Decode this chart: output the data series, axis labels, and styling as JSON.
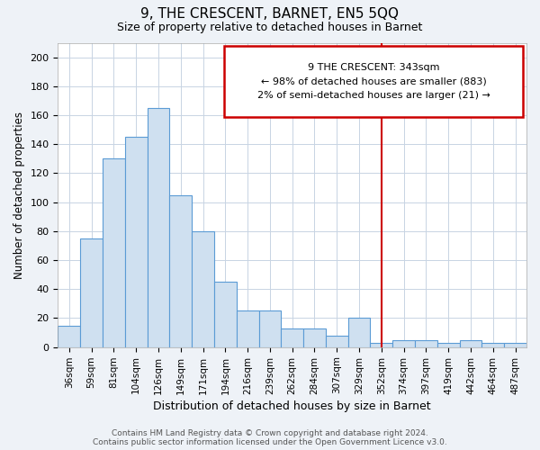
{
  "title": "9, THE CRESCENT, BARNET, EN5 5QQ",
  "subtitle": "Size of property relative to detached houses in Barnet",
  "xlabel": "Distribution of detached houses by size in Barnet",
  "ylabel": "Number of detached properties",
  "bar_color": "#cfe0f0",
  "bar_edge_color": "#5b9bd5",
  "categories": [
    "36sqm",
    "59sqm",
    "81sqm",
    "104sqm",
    "126sqm",
    "149sqm",
    "171sqm",
    "194sqm",
    "216sqm",
    "239sqm",
    "262sqm",
    "284sqm",
    "307sqm",
    "329sqm",
    "352sqm",
    "374sqm",
    "397sqm",
    "419sqm",
    "442sqm",
    "464sqm",
    "487sqm"
  ],
  "values": [
    15,
    75,
    130,
    145,
    165,
    105,
    80,
    45,
    25,
    25,
    13,
    13,
    8,
    20,
    3,
    5,
    5,
    3,
    5,
    3,
    3
  ],
  "vline_x": 14.0,
  "vline_color": "#cc0000",
  "annotation_text": "9 THE CRESCENT: 343sqm\n← 98% of detached houses are smaller (883)\n2% of semi-detached houses are larger (21) →",
  "ylim": [
    0,
    210
  ],
  "yticks": [
    0,
    20,
    40,
    60,
    80,
    100,
    120,
    140,
    160,
    180,
    200
  ],
  "footer_text": "Contains HM Land Registry data © Crown copyright and database right 2024.\nContains public sector information licensed under the Open Government Licence v3.0.",
  "background_color": "#eef2f7",
  "plot_bg_color": "#ffffff",
  "grid_color": "#c8d4e3"
}
